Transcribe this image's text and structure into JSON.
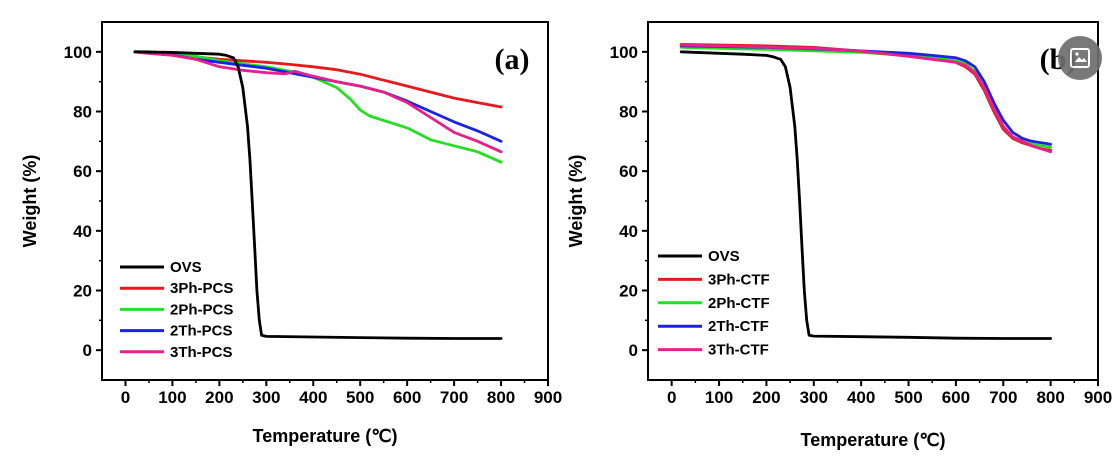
{
  "chart_data": [
    {
      "type": "line",
      "panel_label": "(a)",
      "xlabel": "Temperature (℃)",
      "ylabel": "Weight (%)",
      "xlim": [
        -50,
        900
      ],
      "ylim": [
        -10,
        110
      ],
      "xticks": [
        0,
        100,
        200,
        300,
        400,
        500,
        600,
        700,
        800,
        900
      ],
      "yticks": [
        0,
        20,
        40,
        60,
        80,
        100
      ],
      "legend_position": "bottom-left",
      "series": [
        {
          "name": "OVS",
          "color": "#000000",
          "x": [
            20,
            100,
            150,
            200,
            215,
            230,
            240,
            250,
            260,
            265,
            270,
            275,
            280,
            285,
            290,
            300,
            400,
            500,
            600,
            700,
            800
          ],
          "y": [
            100,
            99.8,
            99.5,
            99.2,
            98.8,
            98,
            95,
            88,
            75,
            64,
            50,
            35,
            20,
            10,
            5,
            4.6,
            4.4,
            4.2,
            4,
            3.9,
            3.9
          ]
        },
        {
          "name": "3Ph-PCS",
          "color": "#e8191e",
          "x": [
            20,
            50,
            100,
            150,
            200,
            250,
            300,
            350,
            400,
            450,
            500,
            550,
            600,
            650,
            700,
            750,
            800
          ],
          "y": [
            100,
            99.5,
            99,
            98.3,
            97.5,
            97,
            96.5,
            95.8,
            95,
            94,
            92.5,
            90.5,
            88.5,
            86.5,
            84.5,
            83,
            81.5
          ]
        },
        {
          "name": "2Ph-PCS",
          "color": "#22e022",
          "x": [
            20,
            50,
            100,
            150,
            200,
            250,
            300,
            350,
            400,
            450,
            480,
            500,
            520,
            540,
            600,
            650,
            700,
            750,
            800
          ],
          "y": [
            100,
            100,
            99.5,
            98.5,
            97,
            96,
            95,
            93.5,
            91.5,
            88,
            84,
            80.5,
            78.5,
            77.5,
            74.5,
            70.5,
            68.5,
            66.5,
            63
          ]
        },
        {
          "name": "2Th-PCS",
          "color": "#1a22e8",
          "x": [
            20,
            50,
            100,
            150,
            200,
            250,
            300,
            350,
            400,
            450,
            500,
            550,
            600,
            650,
            700,
            750,
            800
          ],
          "y": [
            100,
            99.7,
            99,
            97.5,
            96.5,
            95.5,
            94.5,
            93,
            91.5,
            90,
            88.5,
            86.5,
            83.5,
            80,
            76.5,
            73.5,
            70
          ]
        },
        {
          "name": "3Th-PCS",
          "color": "#e8208c",
          "x": [
            20,
            50,
            100,
            150,
            200,
            250,
            300,
            340,
            360,
            400,
            450,
            500,
            550,
            600,
            650,
            700,
            750,
            800
          ],
          "y": [
            100,
            99.5,
            98.8,
            97.5,
            95,
            93.8,
            93,
            92.6,
            93.5,
            91.8,
            90,
            88.5,
            86.5,
            83,
            78,
            73,
            70,
            66.5
          ]
        }
      ]
    },
    {
      "type": "line",
      "panel_label": "(b)",
      "xlabel": "Temperature (℃)",
      "ylabel": "Weight (%)",
      "xlim": [
        -50,
        900
      ],
      "ylim": [
        -10,
        110
      ],
      "xticks": [
        0,
        100,
        200,
        300,
        400,
        500,
        600,
        700,
        800,
        900
      ],
      "yticks": [
        0,
        20,
        40,
        60,
        80,
        100
      ],
      "legend_position": "bottom-left",
      "series": [
        {
          "name": "OVS",
          "color": "#000000",
          "x": [
            20,
            100,
            150,
            200,
            215,
            230,
            240,
            250,
            260,
            265,
            270,
            275,
            280,
            285,
            290,
            300,
            400,
            500,
            600,
            700,
            800
          ],
          "y": [
            100,
            99.5,
            99.2,
            98.8,
            98.3,
            97.5,
            95,
            88,
            75,
            64,
            50,
            35,
            20,
            10,
            5,
            4.7,
            4.5,
            4.3,
            4,
            3.9,
            3.9
          ]
        },
        {
          "name": "3Ph-CTF",
          "color": "#e8191e",
          "x": [
            20,
            100,
            200,
            300,
            400,
            500,
            550,
            600,
            620,
            640,
            660,
            680,
            700,
            720,
            740,
            760,
            780,
            800
          ],
          "y": [
            102.5,
            102.3,
            102,
            101.5,
            100.2,
            98.8,
            97.8,
            96.5,
            95,
            92.5,
            87,
            80,
            74,
            71,
            69.5,
            68.5,
            67.5,
            67
          ]
        },
        {
          "name": "2Ph-CTF",
          "color": "#22e022",
          "x": [
            20,
            100,
            200,
            300,
            400,
            500,
            550,
            600,
            620,
            640,
            660,
            680,
            700,
            720,
            740,
            760,
            780,
            800
          ],
          "y": [
            101.5,
            101.2,
            100.8,
            100.3,
            99.8,
            98.8,
            98,
            97,
            96,
            93.5,
            88,
            81,
            75,
            71.5,
            70,
            69,
            68.5,
            68
          ]
        },
        {
          "name": "2Th-CTF",
          "color": "#1a22e8",
          "x": [
            20,
            100,
            200,
            300,
            400,
            500,
            550,
            600,
            620,
            640,
            660,
            680,
            700,
            720,
            740,
            760,
            780,
            800
          ],
          "y": [
            102,
            101.8,
            101.5,
            101,
            100.3,
            99.5,
            98.8,
            98,
            97,
            95,
            90,
            83,
            77,
            73,
            71,
            70,
            69.5,
            69
          ]
        },
        {
          "name": "3Th-CTF",
          "color": "#e8208c",
          "x": [
            20,
            100,
            200,
            300,
            400,
            500,
            550,
            600,
            620,
            640,
            660,
            680,
            700,
            720,
            740,
            760,
            780,
            800
          ],
          "y": [
            102.3,
            102,
            101.6,
            101.2,
            100.2,
            98.5,
            97.5,
            96.5,
            95.5,
            93,
            88,
            81,
            75,
            71.5,
            70,
            68.5,
            67.5,
            66.5
          ]
        }
      ]
    }
  ],
  "overlay": {
    "icon": "image-search-icon",
    "background": "#6e6e6e"
  }
}
